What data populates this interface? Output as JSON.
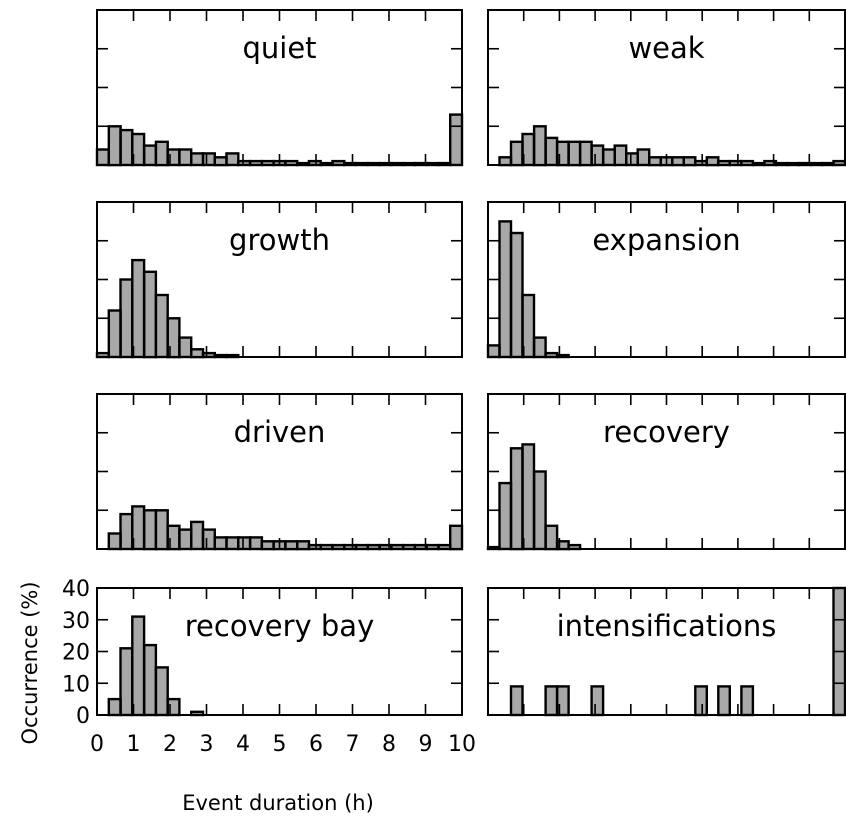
{
  "chart_data": {
    "type": "histogram",
    "layout": "4x2 grid of step-histogram panels sharing axes",
    "fill_color": "#a8a8a8",
    "edge_color": "#000000",
    "xlabel": "Event duration (h)",
    "ylabel": "Occurrence (%)",
    "xlim": [
      0,
      10
    ],
    "ylim": [
      0,
      40
    ],
    "xticks": [
      "0",
      "1",
      "2",
      "3",
      "4",
      "5",
      "6",
      "7",
      "8",
      "9",
      "10"
    ],
    "yticks": [
      "0",
      "10",
      "20",
      "30",
      "40"
    ],
    "bin_width": 0.333,
    "panels": [
      {
        "title": "quiet",
        "values": [
          4,
          10,
          9,
          8,
          5,
          6,
          4,
          4,
          3,
          3,
          2,
          3,
          1,
          1,
          1,
          1,
          1,
          0.5,
          1,
          0.5,
          1,
          0.5,
          0.5,
          0.5,
          0.5,
          0.5,
          0.5,
          0.5,
          0.5,
          0.5,
          13
        ]
      },
      {
        "title": "weak",
        "values": [
          0,
          2,
          6,
          8,
          10,
          7,
          6,
          6,
          6,
          5,
          4,
          5,
          3,
          4,
          2,
          2,
          2,
          2,
          1,
          2,
          1,
          1,
          1,
          0.5,
          1,
          0.5,
          0.5,
          0.5,
          0.5,
          0.5,
          1
        ]
      },
      {
        "title": "growth",
        "values": [
          1,
          12,
          20,
          25,
          22,
          16,
          10,
          5,
          2,
          1,
          0.5,
          0.5,
          0,
          0,
          0,
          0,
          0,
          0,
          0,
          0,
          0,
          0,
          0,
          0,
          0,
          0,
          0,
          0,
          0,
          0,
          0
        ]
      },
      {
        "title": "expansion",
        "values": [
          3,
          35,
          32,
          16,
          5,
          1,
          0.5,
          0,
          0,
          0,
          0,
          0,
          0,
          0,
          0,
          0,
          0,
          0,
          0,
          0,
          0,
          0,
          0,
          0,
          0,
          0,
          0,
          0,
          0,
          0,
          0
        ]
      },
      {
        "title": "driven",
        "values": [
          0,
          4,
          9,
          11,
          10,
          10,
          6,
          5,
          7,
          5,
          3,
          3,
          3,
          3,
          2,
          2,
          2,
          2,
          1,
          1,
          1,
          1,
          1,
          1,
          1,
          1,
          1,
          1,
          1,
          1,
          6
        ]
      },
      {
        "title": "recovery",
        "values": [
          0.5,
          17,
          26,
          27,
          20,
          6,
          2,
          1,
          0,
          0,
          0,
          0,
          0,
          0,
          0,
          0,
          0,
          0,
          0,
          0,
          0,
          0,
          0,
          0,
          0,
          0,
          0,
          0,
          0,
          0,
          0
        ]
      },
      {
        "title": "recovery bay",
        "values": [
          0,
          5,
          21,
          31,
          22,
          15,
          5,
          0,
          1,
          0,
          0,
          0,
          0,
          0,
          0,
          0,
          0,
          0,
          0,
          0,
          0,
          0,
          0,
          0,
          0,
          0,
          0,
          0,
          0,
          0,
          0
        ]
      },
      {
        "title": "intensifications",
        "values": [
          0,
          0,
          9,
          0,
          0,
          9,
          9,
          0,
          0,
          9,
          0,
          0,
          0,
          0,
          0,
          0,
          0,
          0,
          9,
          0,
          9,
          0,
          9,
          0,
          0,
          0,
          0,
          0,
          0,
          0,
          45
        ]
      }
    ]
  }
}
